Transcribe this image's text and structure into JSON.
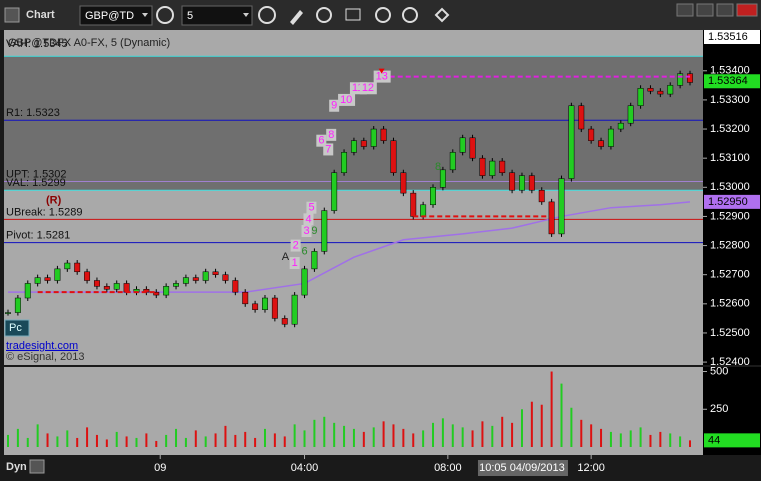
{
  "toolbar": {
    "title": "Chart",
    "symbol": "GBP@TD",
    "interval": "5"
  },
  "footer": {
    "mode": "Dyn"
  },
  "chart_data": {
    "type": "candlestick",
    "title": "GBP@TDFX A0-FX, 5 (Dynamic)",
    "watermark": "tradesight.com",
    "copyright": "© eSignal, 2013",
    "badge": "Pc",
    "ylim": [
      1.5239,
      1.5354
    ],
    "yticks": [
      {
        "value": 1.534,
        "label": "1.53400"
      },
      {
        "value": 1.533,
        "label": "1.53300"
      },
      {
        "value": 1.532,
        "label": "1.53200"
      },
      {
        "value": 1.531,
        "label": "1.53100"
      },
      {
        "value": 1.53,
        "label": "1.53000"
      },
      {
        "value": 1.529,
        "label": "1.52900"
      },
      {
        "value": 1.528,
        "label": "1.52800"
      },
      {
        "value": 1.527,
        "label": "1.52700"
      },
      {
        "value": 1.526,
        "label": "1.52600"
      },
      {
        "value": 1.525,
        "label": "1.52500"
      },
      {
        "value": 1.524,
        "label": "1.52400"
      }
    ],
    "price_tags": [
      {
        "value": 1.53516,
        "label": "1.53516",
        "color": "#ffffff"
      },
      {
        "value": 1.53364,
        "label": "1.53364",
        "color": "#22dd22"
      },
      {
        "value": 1.5295,
        "label": "1.52950",
        "color": "#b070f0"
      }
    ],
    "up_color": "#22cc22",
    "down_color": "#dd1111",
    "close": [
      1.5257,
      1.5262,
      1.5267,
      1.5269,
      1.5268,
      1.5272,
      1.5274,
      1.5271,
      1.5268,
      1.5266,
      1.5265,
      1.5267,
      1.5264,
      1.5265,
      1.5264,
      1.5263,
      1.5266,
      1.5267,
      1.5269,
      1.5268,
      1.5271,
      1.527,
      1.5268,
      1.5264,
      1.526,
      1.5258,
      1.5262,
      1.5255,
      1.5253,
      1.5263,
      1.5272,
      1.5278,
      1.5292,
      1.5305,
      1.5312,
      1.5316,
      1.5314,
      1.532,
      1.5316,
      1.5305,
      1.5298,
      1.529,
      1.5294,
      1.53,
      1.5306,
      1.5312,
      1.5317,
      1.531,
      1.5304,
      1.5309,
      1.5305,
      1.5299,
      1.5304,
      1.5299,
      1.5295,
      1.5284,
      1.5303,
      1.5328,
      1.532,
      1.5316,
      1.5314,
      1.532,
      1.5322,
      1.5328,
      1.5334,
      1.5333,
      1.5332,
      1.5335,
      1.5339,
      1.5336
    ],
    "volume": [
      80,
      120,
      60,
      150,
      90,
      70,
      110,
      60,
      130,
      80,
      50,
      100,
      70,
      60,
      90,
      40,
      80,
      120,
      60,
      110,
      70,
      90,
      140,
      80,
      100,
      60,
      120,
      90,
      70,
      150,
      110,
      180,
      200,
      160,
      140,
      120,
      100,
      130,
      170,
      150,
      120,
      90,
      110,
      160,
      190,
      150,
      130,
      110,
      170,
      140,
      200,
      160,
      250,
      300,
      280,
      500,
      420,
      260,
      180,
      150,
      120,
      100,
      90,
      110,
      130,
      80,
      100,
      90,
      70,
      44
    ],
    "vol_ylim": [
      0,
      530
    ],
    "vol_yticks": [
      500,
      250
    ],
    "last_volume_color": "#22dd22",
    "xticks": [
      {
        "value": 15.4,
        "label": "09"
      },
      {
        "value": 30,
        "label": "04:00"
      },
      {
        "value": 44.5,
        "label": "08:00"
      },
      {
        "value": 52,
        "label": "10:05 04/09/2013",
        "highlight": true
      },
      {
        "value": 59,
        "label": "12:00"
      }
    ],
    "value_area_color": "#6f6f6f",
    "levels": [
      {
        "label": "VAH: 1.5345",
        "value": 1.5345,
        "color": "#40e0e0",
        "area": true
      },
      {
        "label": "R1: 1.5323",
        "value": 1.5323,
        "color": "#1010c0"
      },
      {
        "label": "UPT: 1.5302",
        "value": 1.5302,
        "color": "#a080d0"
      },
      {
        "label": "VAL: 1.5299",
        "value": 1.5299,
        "color": "#40e0e0",
        "area": true
      },
      {
        "label": "UBreak: 1.5289",
        "value": 1.5289,
        "color": "#cc1010"
      },
      {
        "label": "Pivot: 1.5281",
        "value": 1.5281,
        "color": "#1010c0"
      }
    ],
    "note": "(R)",
    "ma": {
      "color": "#a070e8",
      "x": [
        0,
        24,
        30,
        35,
        40,
        46,
        51,
        56,
        61,
        66,
        69
      ],
      "values": [
        1.5264,
        1.5264,
        1.5267,
        1.5276,
        1.5282,
        1.5284,
        1.5286,
        1.529,
        1.5293,
        1.5294,
        1.5295
      ]
    },
    "dashed_segments": [
      {
        "value": 1.5264,
        "x": [
          3,
          15
        ],
        "color": "#e01010"
      },
      {
        "value": 1.529,
        "x": [
          41,
          55
        ],
        "color": "#e01010"
      },
      {
        "value": 1.5338,
        "x": [
          37,
          69
        ],
        "color": "#e020e0"
      }
    ],
    "annotations": [
      {
        "text": "A",
        "x": 28,
        "y": 1.5276,
        "color": "#222222"
      },
      {
        "text": "1",
        "x": 29,
        "y": 1.5274,
        "color": "#ff20ff"
      },
      {
        "text": "2",
        "x": 29.1,
        "y": 1.528,
        "color": "#ff20ff"
      },
      {
        "text": "3",
        "x": 30.2,
        "y": 1.5285,
        "color": "#ff20ff"
      },
      {
        "text": "4",
        "x": 30.4,
        "y": 1.5289,
        "color": "#ff20ff"
      },
      {
        "text": "5",
        "x": 30.7,
        "y": 1.5293,
        "color": "#ff20ff"
      },
      {
        "text": "6",
        "x": 31.7,
        "y": 1.5316,
        "color": "#ff20ff"
      },
      {
        "text": "7",
        "x": 32.4,
        "y": 1.5313,
        "color": "#ff20ff"
      },
      {
        "text": "8",
        "x": 32.7,
        "y": 1.5318,
        "color": "#ff20ff"
      },
      {
        "text": "9",
        "x": 33,
        "y": 1.5328,
        "color": "#ff20ff"
      },
      {
        "text": "10",
        "x": 33.9,
        "y": 1.533,
        "color": "#ff20ff"
      },
      {
        "text": "11",
        "x": 35.1,
        "y": 1.5334,
        "color": "#ff20ff"
      },
      {
        "text": "12",
        "x": 36.1,
        "y": 1.5334,
        "color": "#ff20ff"
      },
      {
        "text": "13",
        "x": 37.5,
        "y": 1.5338,
        "color": "#ff20ff"
      },
      {
        "text": "9",
        "x": 31,
        "y": 1.5285,
        "color": "#2a8a2a"
      },
      {
        "text": "6",
        "x": 30,
        "y": 1.5278,
        "color": "#2a8a2a"
      },
      {
        "text": "8",
        "x": 43.5,
        "y": 1.5307,
        "color": "#2a8a2a"
      }
    ]
  }
}
